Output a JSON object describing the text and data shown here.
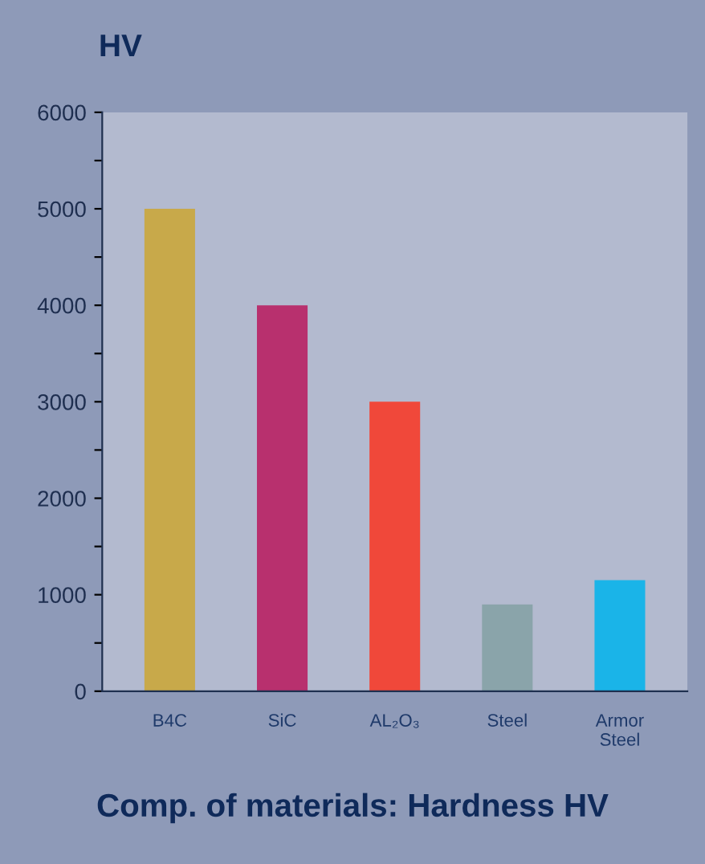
{
  "chart_data": {
    "type": "bar",
    "title": "Comp. of materials: Hardness HV",
    "ylabel": "HV",
    "categories": [
      "B4C",
      "SiC",
      "AL₂O₃",
      "Steel",
      "Armor\nSteel"
    ],
    "values": [
      5000,
      4000,
      3000,
      900,
      1150
    ],
    "colors": [
      "#c8a94a",
      "#b8306e",
      "#f0483a",
      "#8aa4aa",
      "#1ab4e8"
    ],
    "ylim": [
      0,
      6000
    ],
    "yticks": [
      0,
      {
        "value": 500,
        "label": null
      },
      1000,
      {
        "value": 1500,
        "label": null
      },
      2000,
      {
        "value": 2500,
        "label": null
      },
      3000,
      {
        "value": 3500,
        "label": null
      },
      4000,
      {
        "value": 4500,
        "label": null
      },
      5000,
      {
        "value": 5500,
        "label": null
      },
      6000
    ],
    "grid": false
  }
}
